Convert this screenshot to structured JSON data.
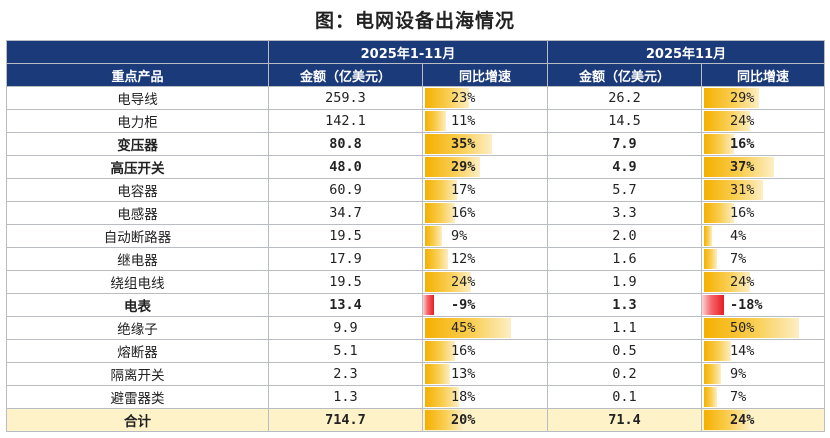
{
  "title": "图：电网设备出海情况",
  "header": {
    "period_a": "2025年1-11月",
    "period_b": "2025年11月",
    "col_product": "重点产品",
    "col_amount": "金额（亿美元）",
    "col_yoy": "同比增速"
  },
  "rows": [
    {
      "name": "电导线",
      "bold": false,
      "a_amt": "259.3",
      "a_yoy": "23%",
      "a_v": 23,
      "b_amt": "26.2",
      "b_yoy": "29%",
      "b_v": 29
    },
    {
      "name": "电力柜",
      "bold": false,
      "a_amt": "142.1",
      "a_yoy": "11%",
      "a_v": 11,
      "b_amt": "14.5",
      "b_yoy": "24%",
      "b_v": 24
    },
    {
      "name": "变压器",
      "bold": true,
      "a_amt": "80.8",
      "a_yoy": "35%",
      "a_v": 35,
      "b_amt": "7.9",
      "b_yoy": "16%",
      "b_v": 16
    },
    {
      "name": "高压开关",
      "bold": true,
      "a_amt": "48.0",
      "a_yoy": "29%",
      "a_v": 29,
      "b_amt": "4.9",
      "b_yoy": "37%",
      "b_v": 37
    },
    {
      "name": "电容器",
      "bold": false,
      "a_amt": "60.9",
      "a_yoy": "17%",
      "a_v": 17,
      "b_amt": "5.7",
      "b_yoy": "31%",
      "b_v": 31
    },
    {
      "name": "电感器",
      "bold": false,
      "a_amt": "34.7",
      "a_yoy": "16%",
      "a_v": 16,
      "b_amt": "3.3",
      "b_yoy": "16%",
      "b_v": 16
    },
    {
      "name": "自动断路器",
      "bold": false,
      "a_amt": "19.5",
      "a_yoy": "9%",
      "a_v": 9,
      "b_amt": "2.0",
      "b_yoy": "4%",
      "b_v": 4
    },
    {
      "name": "继电器",
      "bold": false,
      "a_amt": "17.9",
      "a_yoy": "12%",
      "a_v": 12,
      "b_amt": "1.6",
      "b_yoy": "7%",
      "b_v": 7
    },
    {
      "name": "绕组电线",
      "bold": false,
      "a_amt": "19.5",
      "a_yoy": "24%",
      "a_v": 24,
      "b_amt": "1.9",
      "b_yoy": "24%",
      "b_v": 24
    },
    {
      "name": "电表",
      "bold": true,
      "a_amt": "13.4",
      "a_yoy": "-9%",
      "a_v": -9,
      "b_amt": "1.3",
      "b_yoy": "-18%",
      "b_v": -18
    },
    {
      "name": "绝缘子",
      "bold": false,
      "a_amt": "9.9",
      "a_yoy": "45%",
      "a_v": 45,
      "b_amt": "1.1",
      "b_yoy": "50%",
      "b_v": 50
    },
    {
      "name": "熔断器",
      "bold": false,
      "a_amt": "5.1",
      "a_yoy": "16%",
      "a_v": 16,
      "b_amt": "0.5",
      "b_yoy": "14%",
      "b_v": 14
    },
    {
      "name": "隔离开关",
      "bold": false,
      "a_amt": "2.3",
      "a_yoy": "13%",
      "a_v": 13,
      "b_amt": "0.2",
      "b_yoy": "9%",
      "b_v": 9
    },
    {
      "name": "避雷器类",
      "bold": false,
      "a_amt": "1.3",
      "a_yoy": "18%",
      "a_v": 18,
      "b_amt": "0.1",
      "b_yoy": "7%",
      "b_v": 7
    }
  ],
  "total": {
    "name": "合计",
    "a_amt": "714.7",
    "a_yoy": "20%",
    "a_v": 20,
    "b_amt": "71.4",
    "b_yoy": "24%",
    "b_v": 24
  },
  "colors": {
    "header_bg": "#1a3a7a",
    "positive_bar": "#f5b000",
    "negative_bar": "#e81c24",
    "total_row_bg": "#fdf2c8"
  }
}
